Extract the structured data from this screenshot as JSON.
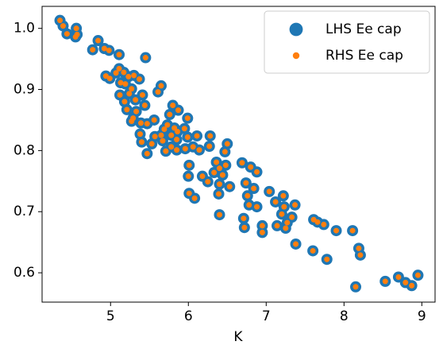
{
  "chart_data": {
    "type": "scatter",
    "x_label": "K",
    "x": [
      4.35,
      4.39,
      4.44,
      4.56,
      4.55,
      4.57,
      4.77,
      4.84,
      4.92,
      4.98,
      5.11,
      5.45,
      4.94,
      4.99,
      5.07,
      5.11,
      5.17,
      5.23,
      5.3,
      5.37,
      5.13,
      5.19,
      5.27,
      5.65,
      5.61,
      5.12,
      5.18,
      5.24,
      5.32,
      5.41,
      5.44,
      5.21,
      5.33,
      5.29,
      5.39,
      5.27,
      5.47,
      5.56,
      5.8,
      5.87,
      5.99,
      5.76,
      5.73,
      5.69,
      5.82,
      5.65,
      5.78,
      5.86,
      5.95,
      5.85,
      5.67,
      5.57,
      5.38,
      5.4,
      5.53,
      5.47,
      5.71,
      5.78,
      5.85,
      5.96,
      5.99,
      6.11,
      6.28,
      6.27,
      6.06,
      6.14,
      6.5,
      6.47,
      6.01,
      6.0,
      6.01,
      6.08,
      6.18,
      6.25,
      6.33,
      6.36,
      6.4,
      6.44,
      6.48,
      6.4,
      6.53,
      6.39,
      6.4,
      6.69,
      6.8,
      6.88,
      6.74,
      6.84,
      6.76,
      6.78,
      6.88,
      6.71,
      6.72,
      6.95,
      6.95,
      7.04,
      7.12,
      7.22,
      7.23,
      7.2,
      7.33,
      7.37,
      7.27,
      7.14,
      7.25,
      7.38,
      7.61,
      7.66,
      7.74,
      7.9,
      7.6,
      7.78,
      8.11,
      8.19,
      8.21,
      8.15,
      8.53,
      8.7,
      8.79,
      8.87,
      8.95
    ],
    "series": [
      {
        "name": "LHS Ee cap",
        "color": "#1f77b4",
        "values": [
          1.013,
          1.004,
          0.991,
          1.0,
          0.986,
          0.99,
          0.965,
          0.98,
          0.967,
          0.964,
          0.957,
          0.952,
          0.922,
          0.918,
          0.927,
          0.934,
          0.928,
          0.921,
          0.923,
          0.917,
          0.911,
          0.909,
          0.901,
          0.906,
          0.896,
          0.891,
          0.88,
          0.893,
          0.883,
          0.891,
          0.874,
          0.867,
          0.864,
          0.853,
          0.845,
          0.848,
          0.844,
          0.85,
          0.874,
          0.866,
          0.853,
          0.859,
          0.842,
          0.835,
          0.837,
          0.825,
          0.825,
          0.831,
          0.836,
          0.818,
          0.816,
          0.823,
          0.827,
          0.814,
          0.811,
          0.795,
          0.799,
          0.806,
          0.801,
          0.803,
          0.822,
          0.824,
          0.824,
          0.807,
          0.806,
          0.801,
          0.811,
          0.798,
          0.776,
          0.758,
          0.73,
          0.722,
          0.758,
          0.749,
          0.764,
          0.781,
          0.771,
          0.76,
          0.776,
          0.745,
          0.741,
          0.729,
          0.695,
          0.78,
          0.773,
          0.765,
          0.747,
          0.738,
          0.726,
          0.711,
          0.708,
          0.689,
          0.674,
          0.677,
          0.666,
          0.733,
          0.716,
          0.726,
          0.708,
          0.696,
          0.691,
          0.711,
          0.682,
          0.677,
          0.673,
          0.647,
          0.687,
          0.683,
          0.679,
          0.669,
          0.636,
          0.622,
          0.669,
          0.64,
          0.629,
          0.577,
          0.586,
          0.593,
          0.584,
          0.579,
          0.596
        ]
      },
      {
        "name": "RHS Ee cap",
        "color": "#ff7f0e",
        "values": [
          1.013,
          1.004,
          0.991,
          1.0,
          0.986,
          0.99,
          0.965,
          0.98,
          0.967,
          0.964,
          0.957,
          0.952,
          0.922,
          0.918,
          0.927,
          0.934,
          0.928,
          0.921,
          0.923,
          0.917,
          0.911,
          0.909,
          0.901,
          0.906,
          0.896,
          0.891,
          0.88,
          0.893,
          0.883,
          0.891,
          0.874,
          0.867,
          0.864,
          0.853,
          0.845,
          0.848,
          0.844,
          0.85,
          0.874,
          0.866,
          0.853,
          0.859,
          0.842,
          0.835,
          0.837,
          0.825,
          0.825,
          0.831,
          0.836,
          0.818,
          0.816,
          0.823,
          0.827,
          0.814,
          0.811,
          0.795,
          0.799,
          0.806,
          0.801,
          0.803,
          0.822,
          0.824,
          0.824,
          0.807,
          0.806,
          0.801,
          0.811,
          0.798,
          0.776,
          0.758,
          0.73,
          0.722,
          0.758,
          0.749,
          0.764,
          0.781,
          0.771,
          0.76,
          0.776,
          0.745,
          0.741,
          0.729,
          0.695,
          0.78,
          0.773,
          0.765,
          0.747,
          0.738,
          0.726,
          0.711,
          0.708,
          0.689,
          0.674,
          0.677,
          0.666,
          0.733,
          0.716,
          0.726,
          0.708,
          0.696,
          0.691,
          0.711,
          0.682,
          0.677,
          0.673,
          0.647,
          0.687,
          0.683,
          0.679,
          0.669,
          0.636,
          0.622,
          0.669,
          0.64,
          0.629,
          0.577,
          0.586,
          0.593,
          0.584,
          0.579,
          0.596
        ]
      }
    ],
    "xlim": [
      4.12,
      9.17
    ],
    "ylim": [
      0.552,
      1.036
    ],
    "xticks": [
      5,
      6,
      7,
      8,
      9
    ],
    "yticks": [
      {
        "value": 0.6,
        "label": "0.6"
      },
      {
        "value": 0.7,
        "label": "0.7"
      },
      {
        "value": 0.8,
        "label": "0.8"
      },
      {
        "value": 0.9,
        "label": "0.9"
      },
      {
        "value": 1.0,
        "label": "1.0"
      }
    ],
    "legend": "upper right"
  }
}
